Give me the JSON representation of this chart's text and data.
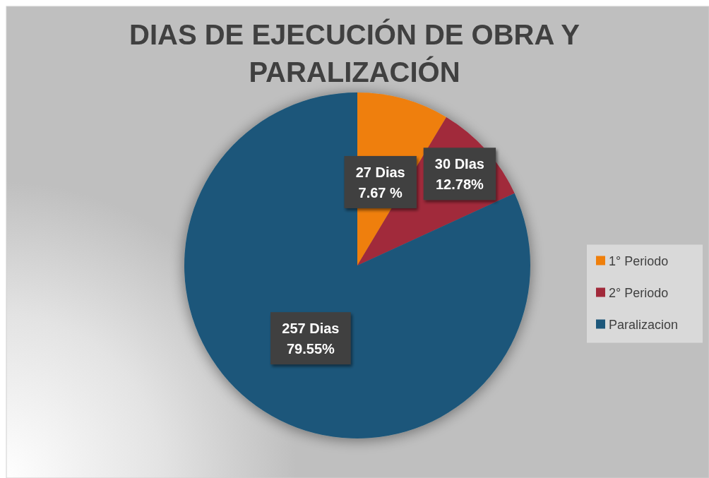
{
  "chart_data": {
    "type": "pie",
    "title": "DIAS DE EJECUCIÓN DE OBRA Y PARALIZACIÓN",
    "categories": [
      "1° Periodo",
      "2° Periodo",
      "Paralizacion"
    ],
    "values": [
      27,
      30,
      257
    ],
    "colors": [
      "#ef7f0b",
      "#a1293a",
      "#1c577a"
    ],
    "value_labels": [
      "27 Dias\n7.67 %",
      "30 DIas\n12.78%",
      "257 Dias\n79.55%"
    ],
    "legend": "right"
  }
}
